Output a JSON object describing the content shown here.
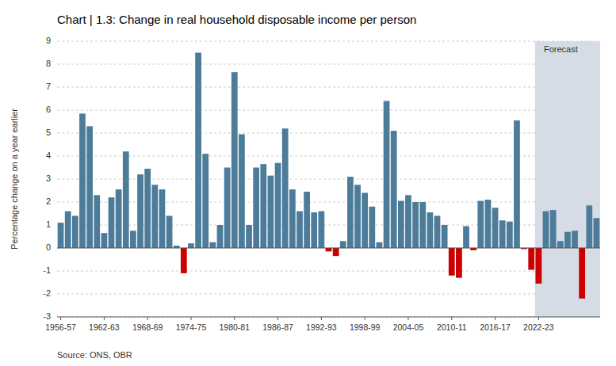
{
  "chart_data": {
    "type": "bar",
    "title": "Chart | 1.3: Change in real household disposable income per person",
    "ylabel": "Percentage change on a year earlier",
    "source": "Source: ONS, OBR",
    "categories": [
      "1956-57",
      null,
      null,
      null,
      null,
      null,
      "1962-63",
      null,
      null,
      null,
      null,
      null,
      "1968-69",
      null,
      null,
      null,
      null,
      null,
      "1974-75",
      null,
      null,
      null,
      null,
      null,
      "1980-81",
      null,
      null,
      null,
      null,
      null,
      "1986-87",
      null,
      null,
      null,
      null,
      null,
      "1992-93",
      null,
      null,
      null,
      null,
      null,
      "1998-99",
      null,
      null,
      null,
      null,
      null,
      "2004-05",
      null,
      null,
      null,
      null,
      null,
      "2010-11",
      null,
      null,
      null,
      null,
      null,
      "2016-17",
      null,
      null,
      null,
      null,
      null,
      "2022-23",
      null,
      null,
      null,
      null,
      null,
      null,
      null,
      null
    ],
    "values": [
      1.1,
      1.6,
      1.4,
      5.85,
      5.3,
      2.3,
      0.65,
      2.2,
      2.55,
      4.2,
      0.75,
      3.2,
      3.45,
      2.75,
      2.55,
      1.4,
      0.1,
      -1.1,
      0.2,
      8.5,
      4.1,
      0.25,
      1.0,
      3.5,
      7.65,
      4.95,
      1.0,
      3.5,
      3.65,
      3.15,
      3.7,
      5.2,
      2.55,
      1.6,
      2.45,
      1.55,
      1.6,
      -0.15,
      -0.35,
      0.3,
      3.1,
      2.75,
      2.4,
      1.8,
      0.25,
      6.4,
      5.1,
      2.05,
      2.3,
      2.0,
      2.0,
      1.55,
      1.4,
      1.0,
      -1.2,
      -1.3,
      0.95,
      -0.1,
      2.05,
      2.1,
      1.75,
      1.2,
      1.15,
      5.55,
      -0.05,
      -0.95,
      -1.55,
      1.6,
      1.65,
      0.3,
      0.7,
      0.75,
      -2.2,
      1.85,
      1.3
    ],
    "colors": [
      "#4d7c9a",
      "#4d7c9a",
      "#4d7c9a",
      "#4d7c9a",
      "#4d7c9a",
      "#4d7c9a",
      "#4d7c9a",
      "#4d7c9a",
      "#4d7c9a",
      "#4d7c9a",
      "#4d7c9a",
      "#4d7c9a",
      "#4d7c9a",
      "#4d7c9a",
      "#4d7c9a",
      "#4d7c9a",
      "#4d7c9a",
      "#cc0000",
      "#4d7c9a",
      "#4d7c9a",
      "#4d7c9a",
      "#4d7c9a",
      "#4d7c9a",
      "#4d7c9a",
      "#4d7c9a",
      "#4d7c9a",
      "#4d7c9a",
      "#4d7c9a",
      "#4d7c9a",
      "#4d7c9a",
      "#4d7c9a",
      "#4d7c9a",
      "#4d7c9a",
      "#4d7c9a",
      "#4d7c9a",
      "#4d7c9a",
      "#4d7c9a",
      "#cc0000",
      "#cc0000",
      "#4d7c9a",
      "#4d7c9a",
      "#4d7c9a",
      "#4d7c9a",
      "#4d7c9a",
      "#4d7c9a",
      "#4d7c9a",
      "#4d7c9a",
      "#4d7c9a",
      "#4d7c9a",
      "#4d7c9a",
      "#4d7c9a",
      "#4d7c9a",
      "#4d7c9a",
      "#4d7c9a",
      "#cc0000",
      "#cc0000",
      "#4d7c9a",
      "#cc0000",
      "#4d7c9a",
      "#4d7c9a",
      "#4d7c9a",
      "#4d7c9a",
      "#4d7c9a",
      "#4d7c9a",
      "#cc0000",
      "#cc0000",
      "#cc0000",
      "#4d7c9a",
      "#4d7c9a",
      "#4d7c9a",
      "#4d7c9a",
      "#4d7c9a",
      "#cc0000",
      "#4d7c9a",
      "#4d7c9a"
    ],
    "ylim": [
      -3,
      9
    ],
    "yticks": [
      -3,
      -2,
      -1,
      0,
      1,
      2,
      3,
      4,
      5,
      6,
      7,
      8,
      9
    ],
    "grid": true,
    "annotations": [
      {
        "type": "span",
        "label": "Forecast",
        "from": "2022-23",
        "color": "#d5dce6"
      }
    ]
  }
}
